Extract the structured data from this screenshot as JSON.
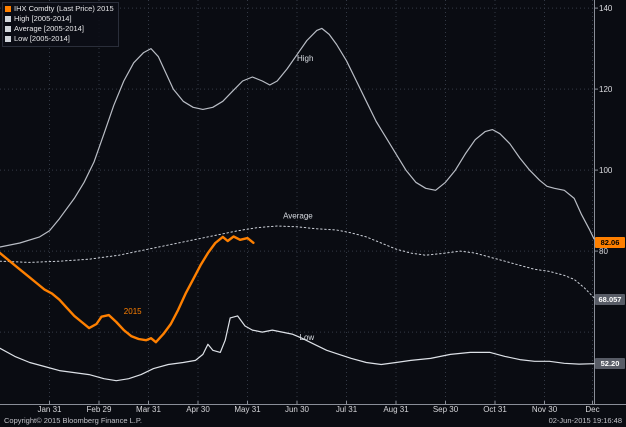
{
  "footer": {
    "left": "Copyright© 2015 Bloomberg Finance L.P.",
    "right": "02-Jun-2015 19:16:48"
  },
  "colors": {
    "background": "#0a0c12",
    "grid": "#343a46",
    "axis_text": "#dcdce0",
    "badge_gray_bg": "#585c66",
    "badge_gray_text": "#ffffff",
    "badge_orange_bg": "#ff8000",
    "badge_orange_text": "#000000",
    "accent_orange": "#ff8000"
  },
  "legend": {
    "items": [
      {
        "id": "price-2015",
        "label": "IHX Comdty (Last Price) 2015",
        "color": "#ff8000"
      },
      {
        "id": "high",
        "label": "High [2005-2014]",
        "color": "#d0d4da"
      },
      {
        "id": "average",
        "label": "Average [2005-2014]",
        "color": "#d0d4da"
      },
      {
        "id": "low",
        "label": "Low [2005-2014]",
        "color": "#d0d4da"
      }
    ]
  },
  "chart_data": {
    "type": "line",
    "title": "",
    "legend_position": "top-left",
    "grid": true,
    "x_axis": {
      "range": [
        0,
        12
      ],
      "ticks": [
        {
          "x": 1,
          "label": "Jan 31"
        },
        {
          "x": 2,
          "label": "Feb 29"
        },
        {
          "x": 3,
          "label": "Mar 31"
        },
        {
          "x": 4,
          "label": "Apr 30"
        },
        {
          "x": 5,
          "label": "May 31"
        },
        {
          "x": 6,
          "label": "Jun 30"
        },
        {
          "x": 7,
          "label": "Jul 31"
        },
        {
          "x": 8,
          "label": "Aug 31"
        },
        {
          "x": 9,
          "label": "Sep 30"
        },
        {
          "x": 10,
          "label": "Oct 31"
        },
        {
          "x": 11,
          "label": "Nov 30"
        },
        {
          "x": 11.97,
          "label": "Dec"
        }
      ]
    },
    "y_axis": {
      "range": [
        42,
        142
      ],
      "grid_values": [
        60,
        80,
        100,
        120,
        140
      ],
      "ticks": [
        {
          "value": 140,
          "label": "140"
        },
        {
          "value": 120,
          "label": "120"
        },
        {
          "value": 100,
          "label": "100"
        },
        {
          "value": 80,
          "label": "80"
        }
      ],
      "badges": [
        {
          "series": "price-2015",
          "value": 82.06,
          "label": "82.06",
          "style": "orange"
        },
        {
          "series": "average",
          "value": 68.057,
          "label": "68.057",
          "style": "gray"
        },
        {
          "series": "low",
          "value": 52.2,
          "label": "52.20",
          "style": "gray"
        }
      ]
    },
    "annotations": [
      {
        "id": "high",
        "text": "High",
        "x": 6.0,
        "y": 127,
        "color": "#d8dce2"
      },
      {
        "id": "average",
        "text": "Average",
        "x": 5.72,
        "y": 88,
        "color": "#d8dce2"
      },
      {
        "id": "low",
        "text": "Low",
        "x": 6.05,
        "y": 58,
        "color": "#d8dce2"
      },
      {
        "id": "2015",
        "text": "2015",
        "x": 2.5,
        "y": 64.5,
        "color": "#ff8000"
      }
    ],
    "series": [
      {
        "id": "high",
        "name": "High [2005-2014]",
        "color": "#b9bdc5",
        "width": 1.2,
        "points": [
          [
            0,
            81
          ],
          [
            0.4,
            82
          ],
          [
            0.8,
            83.5
          ],
          [
            1,
            85
          ],
          [
            1.2,
            88
          ],
          [
            1.5,
            93
          ],
          [
            1.7,
            97
          ],
          [
            1.9,
            102
          ],
          [
            2.1,
            109
          ],
          [
            2.3,
            116
          ],
          [
            2.5,
            122
          ],
          [
            2.7,
            126.5
          ],
          [
            2.9,
            129
          ],
          [
            3.05,
            130
          ],
          [
            3.2,
            128
          ],
          [
            3.35,
            124
          ],
          [
            3.5,
            120
          ],
          [
            3.7,
            117
          ],
          [
            3.9,
            115.5
          ],
          [
            4.1,
            115
          ],
          [
            4.3,
            115.5
          ],
          [
            4.5,
            117
          ],
          [
            4.7,
            119.5
          ],
          [
            4.9,
            122
          ],
          [
            5.1,
            123
          ],
          [
            5.3,
            122
          ],
          [
            5.45,
            121
          ],
          [
            5.6,
            122
          ],
          [
            5.8,
            125
          ],
          [
            6,
            128.5
          ],
          [
            6.2,
            132
          ],
          [
            6.4,
            134.5
          ],
          [
            6.5,
            135
          ],
          [
            6.65,
            133.5
          ],
          [
            6.8,
            131
          ],
          [
            7,
            127
          ],
          [
            7.2,
            122
          ],
          [
            7.4,
            117
          ],
          [
            7.6,
            112
          ],
          [
            7.8,
            108
          ],
          [
            8,
            104
          ],
          [
            8.2,
            100
          ],
          [
            8.4,
            97
          ],
          [
            8.6,
            95.5
          ],
          [
            8.8,
            95
          ],
          [
            9,
            97
          ],
          [
            9.2,
            100
          ],
          [
            9.4,
            104
          ],
          [
            9.6,
            107.5
          ],
          [
            9.8,
            109.5
          ],
          [
            9.95,
            110
          ],
          [
            10.1,
            109
          ],
          [
            10.3,
            106.5
          ],
          [
            10.5,
            103
          ],
          [
            10.7,
            100
          ],
          [
            10.9,
            97.5
          ],
          [
            11.05,
            96
          ],
          [
            11.2,
            95.5
          ],
          [
            11.4,
            95
          ],
          [
            11.6,
            93
          ],
          [
            11.75,
            89
          ],
          [
            11.9,
            85.5
          ],
          [
            12,
            83
          ]
        ]
      },
      {
        "id": "average",
        "name": "Average [2005-2014]",
        "color": "#cdd1d9",
        "width": 1,
        "dash": "1.5,2.6",
        "points": [
          [
            0,
            77.5
          ],
          [
            0.6,
            77.2
          ],
          [
            1.2,
            77.5
          ],
          [
            1.8,
            78
          ],
          [
            2.4,
            79
          ],
          [
            3,
            80.5
          ],
          [
            3.6,
            82
          ],
          [
            4.2,
            83.5
          ],
          [
            4.8,
            85
          ],
          [
            5.2,
            85.8
          ],
          [
            5.6,
            86.2
          ],
          [
            6,
            86
          ],
          [
            6.4,
            85.5
          ],
          [
            6.8,
            85.2
          ],
          [
            7.1,
            84.5
          ],
          [
            7.4,
            83.5
          ],
          [
            7.7,
            82
          ],
          [
            8,
            80.5
          ],
          [
            8.3,
            79.5
          ],
          [
            8.6,
            79
          ],
          [
            9,
            79.5
          ],
          [
            9.3,
            80
          ],
          [
            9.6,
            79.5
          ],
          [
            9.9,
            78.5
          ],
          [
            10.2,
            77.5
          ],
          [
            10.5,
            76.5
          ],
          [
            10.8,
            75.5
          ],
          [
            11.1,
            75
          ],
          [
            11.4,
            74
          ],
          [
            11.6,
            73
          ],
          [
            11.8,
            71
          ],
          [
            12,
            68.5
          ]
        ]
      },
      {
        "id": "low",
        "name": "Low [2005-2014]",
        "color": "#dde1e7",
        "width": 1.2,
        "points": [
          [
            0,
            56
          ],
          [
            0.3,
            54
          ],
          [
            0.6,
            52.5
          ],
          [
            0.9,
            51.5
          ],
          [
            1.2,
            50.5
          ],
          [
            1.5,
            50
          ],
          [
            1.8,
            49.5
          ],
          [
            2.1,
            48.5
          ],
          [
            2.35,
            48
          ],
          [
            2.6,
            48.5
          ],
          [
            2.85,
            49.5
          ],
          [
            3.1,
            51
          ],
          [
            3.4,
            52
          ],
          [
            3.7,
            52.5
          ],
          [
            3.95,
            53
          ],
          [
            4.1,
            54.5
          ],
          [
            4.2,
            57
          ],
          [
            4.3,
            55.5
          ],
          [
            4.45,
            55
          ],
          [
            4.55,
            58
          ],
          [
            4.65,
            63.5
          ],
          [
            4.8,
            64
          ],
          [
            4.95,
            61.5
          ],
          [
            5.1,
            60.5
          ],
          [
            5.3,
            60
          ],
          [
            5.5,
            60.5
          ],
          [
            5.7,
            60
          ],
          [
            5.9,
            59.5
          ],
          [
            6.1,
            58.5
          ],
          [
            6.35,
            57
          ],
          [
            6.6,
            55.5
          ],
          [
            6.85,
            54.5
          ],
          [
            7.1,
            53.5
          ],
          [
            7.4,
            52.5
          ],
          [
            7.7,
            52
          ],
          [
            8,
            52.5
          ],
          [
            8.3,
            53
          ],
          [
            8.7,
            53.5
          ],
          [
            9.1,
            54.5
          ],
          [
            9.5,
            55
          ],
          [
            9.9,
            55
          ],
          [
            10.2,
            54
          ],
          [
            10.5,
            53.2
          ],
          [
            10.8,
            52.8
          ],
          [
            11.1,
            52.8
          ],
          [
            11.4,
            52.3
          ],
          [
            11.7,
            52.1
          ],
          [
            12,
            52.2
          ]
        ]
      },
      {
        "id": "price-2015",
        "name": "IHX Comdty (Last Price) 2015",
        "color": "#ff8000",
        "width": 2.4,
        "points": [
          [
            0,
            79.5
          ],
          [
            0.15,
            78
          ],
          [
            0.3,
            76.5
          ],
          [
            0.45,
            75
          ],
          [
            0.6,
            73.5
          ],
          [
            0.75,
            72
          ],
          [
            0.9,
            70.5
          ],
          [
            1.05,
            69.5
          ],
          [
            1.2,
            68
          ],
          [
            1.35,
            66
          ],
          [
            1.5,
            64
          ],
          [
            1.65,
            62.5
          ],
          [
            1.8,
            61
          ],
          [
            1.95,
            62
          ],
          [
            2.05,
            63.8
          ],
          [
            2.2,
            64.2
          ],
          [
            2.35,
            62.5
          ],
          [
            2.5,
            60.5
          ],
          [
            2.65,
            59
          ],
          [
            2.8,
            58.3
          ],
          [
            2.95,
            58
          ],
          [
            3.05,
            58.5
          ],
          [
            3.15,
            57.5
          ],
          [
            3.3,
            59.5
          ],
          [
            3.45,
            62
          ],
          [
            3.6,
            65.5
          ],
          [
            3.75,
            69.5
          ],
          [
            3.9,
            73
          ],
          [
            4.05,
            76.5
          ],
          [
            4.2,
            79.5
          ],
          [
            4.35,
            82
          ],
          [
            4.5,
            83.5
          ],
          [
            4.6,
            82.5
          ],
          [
            4.72,
            83.6
          ],
          [
            4.85,
            82.8
          ],
          [
            5,
            83.2
          ],
          [
            5.12,
            82.06
          ]
        ]
      }
    ]
  }
}
